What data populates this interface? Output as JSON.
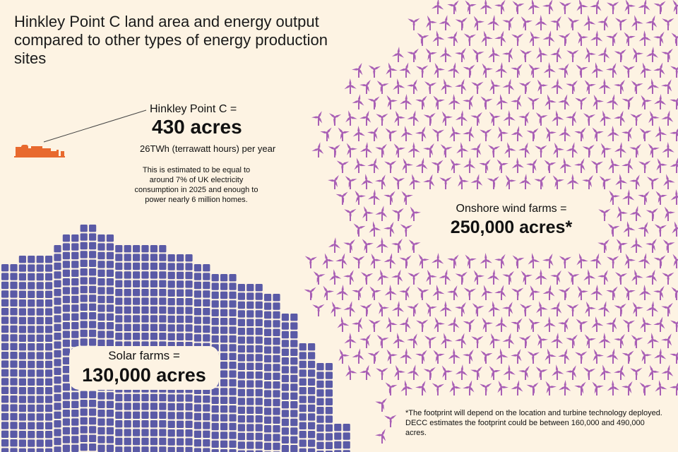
{
  "title": "Hinkley Point C land area and energy output compared to other types of energy production sites",
  "hinkley": {
    "label": "Hinkley Point C =",
    "value": "430 acres",
    "output": "26TWh (terrawatt hours) per year",
    "note": "This is estimated to be equal to around 7% of UK electricity consumption in 2025 and enough to power nearly 6 million homes.",
    "icon": "power-station-icon",
    "color": "#e8692e"
  },
  "solar": {
    "label": "Solar farms =",
    "value": "130,000 acres",
    "icon": "solar-panel-icon",
    "color": "#5a5aa6"
  },
  "wind": {
    "label": "Onshore wind farms =",
    "value": "250,000 acres*",
    "icon": "wind-turbine-icon",
    "color": "#a85fb5"
  },
  "footnote": "*The footprint will depend on the location and turbine technology deployed. DECC estimates the footprint could be between 160,000 and 490,000 acres.",
  "colors": {
    "background": "#fdf3e3",
    "text": "#111111"
  }
}
